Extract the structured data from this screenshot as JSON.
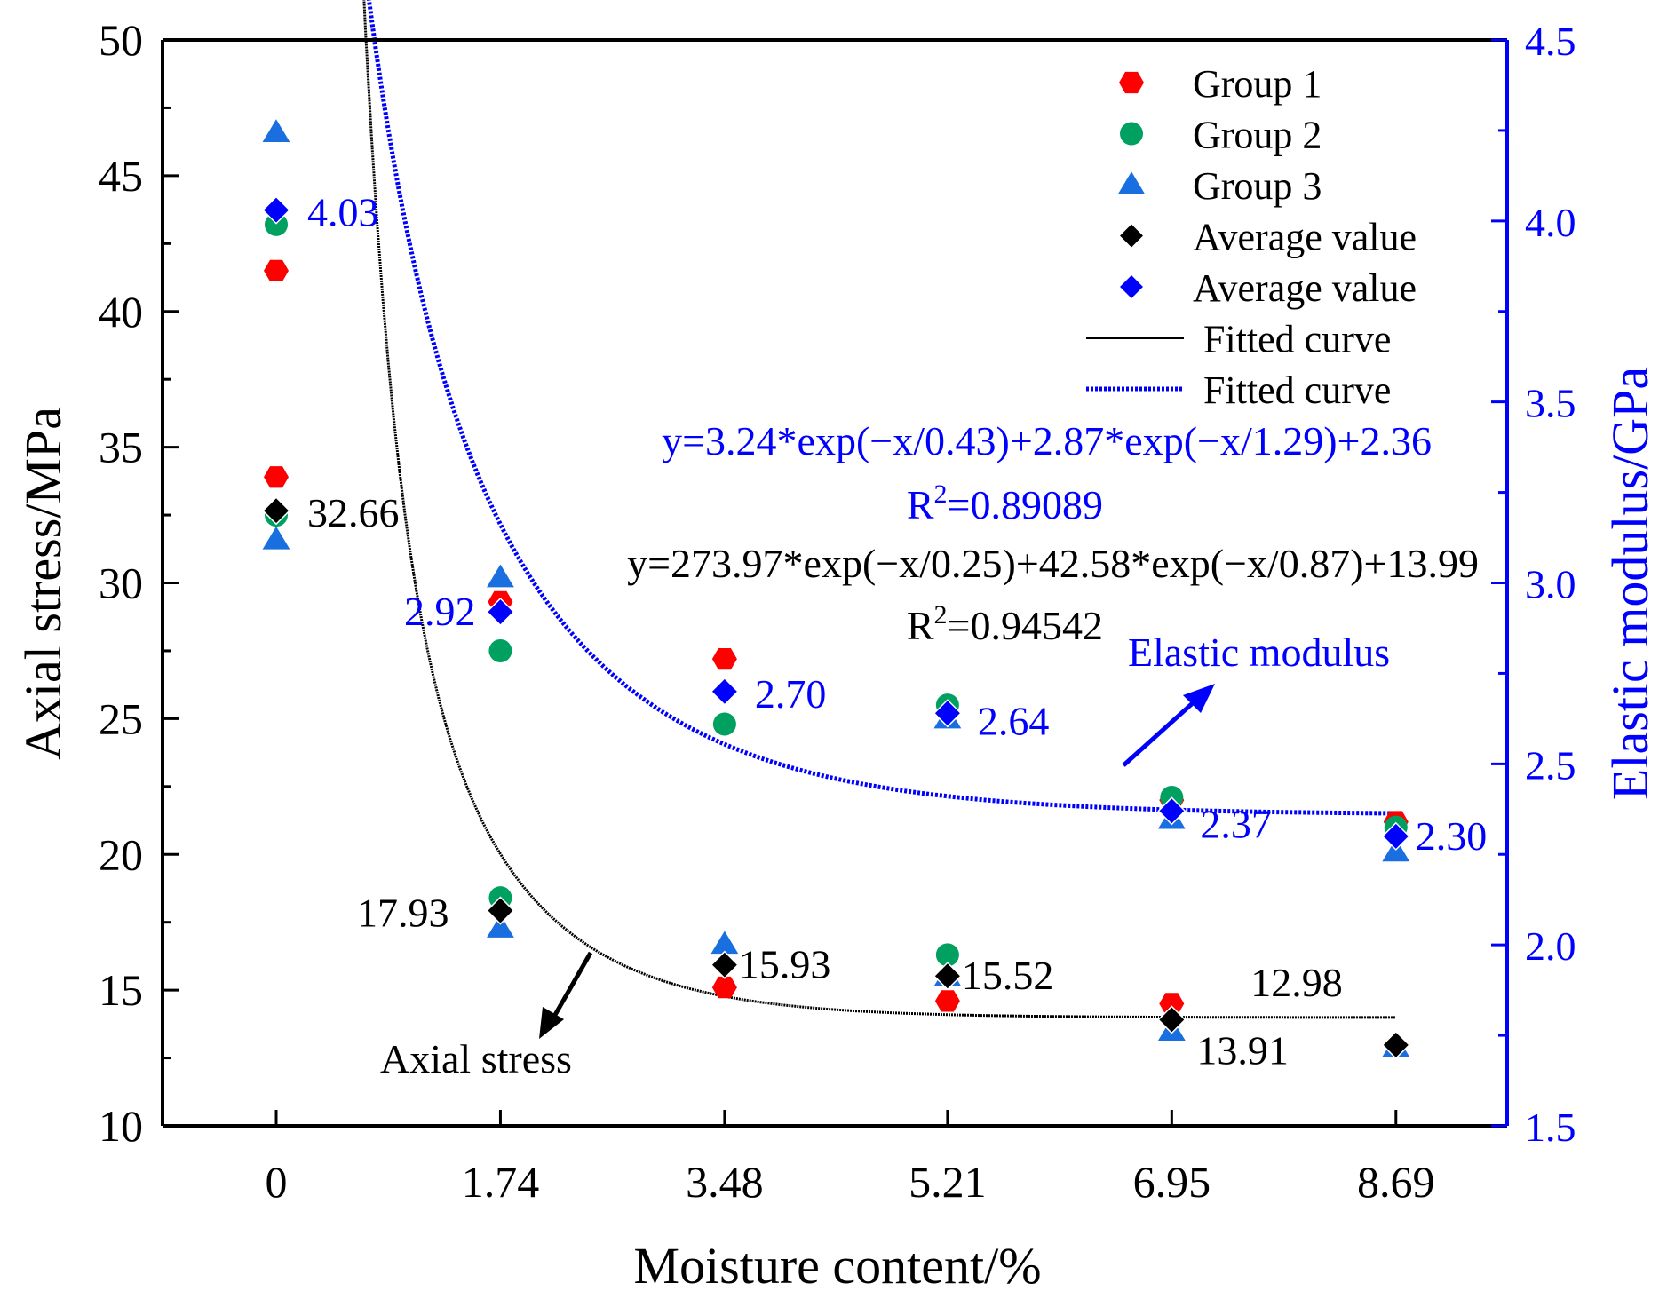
{
  "chart_data": {
    "type": "scatter",
    "xlabel": "Moisture content/%",
    "ylabel_left": "Axial stress/MPa",
    "ylabel_right": "Elastic modulus/GPa",
    "x_categories": [
      "0",
      "1.74",
      "3.48",
      "5.21",
      "6.95",
      "8.69"
    ],
    "x_values": [
      0,
      1.74,
      3.48,
      5.21,
      6.95,
      8.69
    ],
    "ylim_left": [
      10,
      50
    ],
    "yticks_left": [
      10,
      15,
      20,
      25,
      30,
      35,
      40,
      45,
      50
    ],
    "ylim_right": [
      1.5,
      4.5
    ],
    "yticks_right": [
      "1.5",
      "2.0",
      "2.5",
      "3.0",
      "3.5",
      "4.0",
      "4.5"
    ],
    "colors": {
      "group1": "#ff0000",
      "group2": "#00a060",
      "group3": "#1a6fe0",
      "avg_stress": "#000000",
      "avg_modulus": "#0000ff",
      "right_axis": "#0000ff"
    },
    "series": [
      {
        "name": "Group 1",
        "axis": "left",
        "marker": "hexagon",
        "color": "#ff0000",
        "points": [
          [
            0,
            41.5
          ],
          [
            0,
            33.9
          ],
          [
            1.74,
            29.3
          ],
          [
            3.48,
            27.2
          ],
          [
            3.48,
            15.1
          ],
          [
            5.21,
            14.6
          ],
          [
            6.95,
            14.5
          ],
          [
            6.95,
            22.0
          ],
          [
            8.69,
            21.2
          ]
        ]
      },
      {
        "name": "Group 2",
        "axis": "left",
        "marker": "circle",
        "color": "#00a060",
        "points": [
          [
            0,
            43.2
          ],
          [
            0,
            32.5
          ],
          [
            1.74,
            27.5
          ],
          [
            1.74,
            18.4
          ],
          [
            3.48,
            24.8
          ],
          [
            5.21,
            25.5
          ],
          [
            5.21,
            16.3
          ],
          [
            6.95,
            22.1
          ],
          [
            8.69,
            21.0
          ]
        ]
      },
      {
        "name": "Group 3",
        "axis": "left",
        "marker": "triangle",
        "color": "#1a6fe0",
        "points": [
          [
            0,
            46.6
          ],
          [
            0,
            31.6
          ],
          [
            1.74,
            30.2
          ],
          [
            1.74,
            17.3
          ],
          [
            3.48,
            16.7
          ],
          [
            5.21,
            25.0
          ],
          [
            5.21,
            15.5
          ],
          [
            6.95,
            21.3
          ],
          [
            6.95,
            13.5
          ],
          [
            8.69,
            20.1
          ],
          [
            8.69,
            12.9
          ]
        ]
      },
      {
        "name": "Average value",
        "axis": "left",
        "marker": "diamond",
        "color": "#000000",
        "points": [
          [
            0,
            32.66
          ],
          [
            1.74,
            17.93
          ],
          [
            3.48,
            15.93
          ],
          [
            5.21,
            15.52
          ],
          [
            6.95,
            13.91
          ],
          [
            8.69,
            12.98
          ]
        ],
        "labels": [
          "32.66",
          "17.93",
          "15.93",
          "15.52",
          "13.91",
          "12.98"
        ]
      },
      {
        "name": "Average value",
        "axis": "right",
        "marker": "diamond",
        "color": "#0000ff",
        "points": [
          [
            0,
            4.03
          ],
          [
            1.74,
            2.92
          ],
          [
            3.48,
            2.7
          ],
          [
            5.21,
            2.64
          ],
          [
            6.95,
            2.37
          ],
          [
            8.69,
            2.3
          ]
        ],
        "labels": [
          "4.03",
          "2.92",
          "2.70",
          "2.64",
          "2.37",
          "2.30"
        ]
      }
    ],
    "fits": [
      {
        "name": "Fitted curve",
        "axis": "left",
        "color": "#000000",
        "style": "solid",
        "equation": "y=273.97*exp(−x/0.25)+42.58*exp(−x/0.87)+13.99",
        "r2_prefix": "R",
        "r2_sup": "2",
        "r2_value": "=0.94542",
        "params": {
          "a1": 273.97,
          "t1": 0.25,
          "a2": 42.58,
          "t2": 0.87,
          "y0": 13.99
        },
        "x_range": [
          0,
          8.69
        ]
      },
      {
        "name": "Fitted curve",
        "axis": "right",
        "color": "#0000ff",
        "style": "dashed",
        "equation": "y=3.24*exp(−x/0.43)+2.87*exp(−x/1.29)+2.36",
        "r2_prefix": "R",
        "r2_sup": "2",
        "r2_value": "=0.89089",
        "params": {
          "a1": 3.24,
          "t1": 0.43,
          "a2": 2.87,
          "t2": 1.29,
          "y0": 2.36
        },
        "x_range": [
          0,
          8.69
        ]
      }
    ],
    "legend": {
      "position": "top-right",
      "entries": [
        {
          "label": "Group 1",
          "marker": "hexagon",
          "color": "#ff0000"
        },
        {
          "label": "Group 2",
          "marker": "circle",
          "color": "#00a060"
        },
        {
          "label": "Group 3",
          "marker": "triangle",
          "color": "#1a6fe0"
        },
        {
          "label": "Average value",
          "marker": "diamond",
          "color": "#000000"
        },
        {
          "label": "Average value",
          "marker": "diamond",
          "color": "#0000ff"
        },
        {
          "label": "Fitted curve",
          "marker": "line",
          "color": "#000000"
        },
        {
          "label": "Fitted curve",
          "marker": "dashline",
          "color": "#0000ff"
        }
      ]
    },
    "annotations": {
      "elastic_modulus_label": "Elastic modulus",
      "axial_stress_label": "Axial stress"
    }
  }
}
